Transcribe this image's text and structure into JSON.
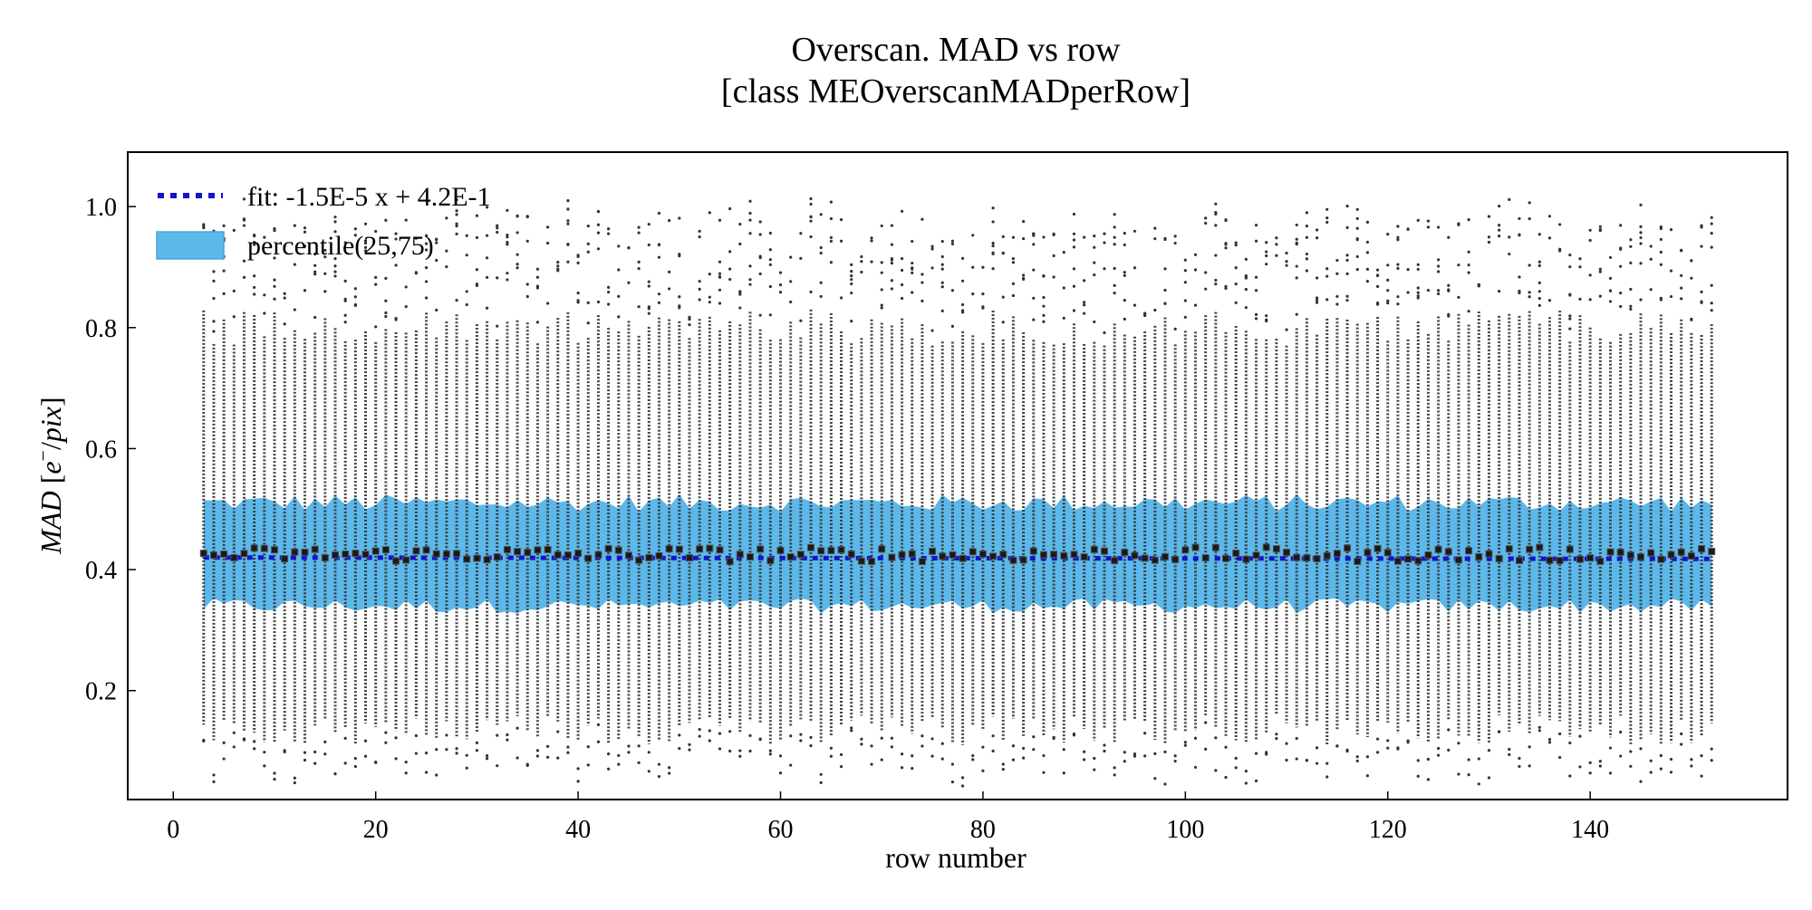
{
  "chart_data": {
    "type": "scatter",
    "title": "Overscan. MAD vs row",
    "subtitle": "[class MEOverscanMADperRow]",
    "xlabel": "row number",
    "ylabel_parts": {
      "base": "MAD [",
      "var": "e",
      "sup": "−",
      "rest": "/pix]"
    },
    "xlim": [
      -4.5,
      159.5
    ],
    "ylim": [
      0.02,
      1.09
    ],
    "x_ticks": [
      0,
      20,
      40,
      60,
      80,
      100,
      120,
      140
    ],
    "x_tick_labels": [
      "0",
      "20",
      "40",
      "60",
      "80",
      "100",
      "120",
      "140"
    ],
    "y_ticks": [
      0.2,
      0.4,
      0.6,
      0.8,
      1.0
    ],
    "y_tick_labels": [
      "0.2",
      "0.4",
      "0.6",
      "0.8",
      "1.0"
    ],
    "grid": false,
    "legend_position": "upper-left",
    "x_range": [
      3,
      152
    ],
    "fit": {
      "label": "fit: -1.5E-5 x + 4.2E-1",
      "slope": -1.5e-05,
      "intercept": 0.42,
      "color": "#1414c8"
    },
    "band": {
      "label": "percentile(25,75)",
      "lower": 0.34,
      "upper": 0.51,
      "color": "#5db8ea"
    },
    "medians": {
      "mean": 0.425,
      "spread": 0.012
    },
    "scatter_range": [
      0.11,
      0.8
    ],
    "colors": {
      "points": "#333333",
      "median_marker": "#1a1a1a"
    }
  }
}
